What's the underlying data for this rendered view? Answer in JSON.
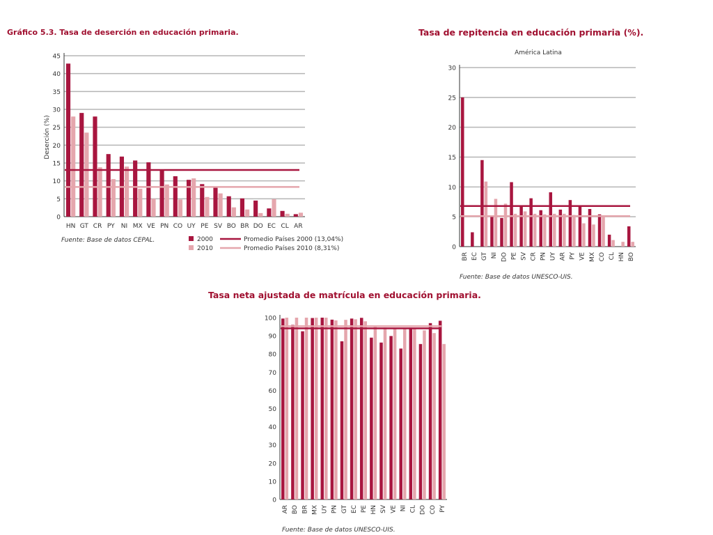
{
  "colors": {
    "y2000": "#a8163f",
    "y2010": "#e5a6ad",
    "grid": "#b5b5b5",
    "axis": "#333333",
    "title": "#a01030"
  },
  "chart_data": [
    {
      "type": "bar",
      "title": "Gráfico 5.3. Tasa de deserción en educación primaria.",
      "subtitle": "",
      "xlabel": "",
      "ylabel": "Deserción (%)",
      "ylim": [
        0,
        45
      ],
      "yticks": [
        "0",
        "5",
        "10",
        "15",
        "20",
        "25",
        "30",
        "35",
        "40",
        "45"
      ],
      "grid": true,
      "legend_position": "bottom-right",
      "source": "Fuente: Base de datos CEPAL.",
      "categories": [
        "HN",
        "GT",
        "CR",
        "PY",
        "NI",
        "MX",
        "VE",
        "PN",
        "CO",
        "UY",
        "PE",
        "SV",
        "BO",
        "BR",
        "DO",
        "EC",
        "CL",
        "AR"
      ],
      "series": [
        {
          "name": "2000",
          "values": [
            42.8,
            29,
            28,
            17.5,
            16.8,
            15.7,
            15.2,
            13.2,
            11.3,
            10.3,
            9.1,
            8.1,
            5.7,
            5.1,
            4.5,
            2.3,
            1.6,
            0.7
          ]
        },
        {
          "name": "2010",
          "values": [
            28,
            23.5,
            13.8,
            10.5,
            14,
            7.8,
            5,
            9,
            4.8,
            10.7,
            5.5,
            6.5,
            2.6,
            2,
            1,
            4.9,
            0.8,
            1.1
          ]
        }
      ],
      "reference_lines": [
        {
          "name": "Promedio Países 2000 (13,04%)",
          "value": 13.04
        },
        {
          "name": "Promedio Países 2010 (8,31%)",
          "value": 8.31
        }
      ]
    },
    {
      "type": "bar",
      "title": "Tasa de repitencia en educación primaria (%).",
      "subtitle": "América Latina",
      "xlabel": "",
      "ylabel": "",
      "ylim": [
        0,
        30
      ],
      "yticks": [
        "0",
        "5",
        "10",
        "15",
        "20",
        "25",
        "30"
      ],
      "grid": true,
      "source": "Fuente: Base de datos UNESCO-UIS.",
      "categories": [
        "BR",
        "EC",
        "GT",
        "NI",
        "DO",
        "PE",
        "SV",
        "CR",
        "PN",
        "UY",
        "AR",
        "PY",
        "VE",
        "MX",
        "CO",
        "CL",
        "HN",
        "BO"
      ],
      "series": [
        {
          "values": [
            25,
            2.4,
            14.5,
            5,
            4.8,
            10.8,
            6.7,
            8.1,
            6.1,
            9.1,
            6.2,
            7.8,
            6.8,
            6.3,
            5.4,
            2,
            0,
            3.4
          ]
        },
        {
          "values": [
            0,
            0,
            10.9,
            8,
            7.2,
            5.5,
            5.9,
            5.5,
            5.4,
            5.5,
            5.5,
            5.3,
            3.9,
            3.7,
            5.2,
            1.1,
            0.8,
            0.8
          ]
        }
      ],
      "reference_lines": [
        {
          "value": 6.8
        },
        {
          "value": 5.1
        }
      ]
    },
    {
      "type": "bar",
      "title": "Tasa neta ajustada de matrícula en educación primaria.",
      "subtitle": "",
      "xlabel": "",
      "ylabel": "",
      "ylim": [
        0,
        100
      ],
      "yticks": [
        "0",
        "10",
        "20",
        "30",
        "40",
        "50",
        "60",
        "70",
        "80",
        "90",
        "100"
      ],
      "grid": false,
      "source": "Fuente: Base de datos UNESCO-UIS.",
      "categories": [
        "AR",
        "BO",
        "BR",
        "MX",
        "UY",
        "PN",
        "GT",
        "EC",
        "PE",
        "HN",
        "SV",
        "VE",
        "NI",
        "CL",
        "DO",
        "CO",
        "PY"
      ],
      "series": [
        {
          "values": [
            99.5,
            96,
            92.5,
            99.8,
            100,
            98.9,
            87,
            99.5,
            99.9,
            89,
            86.3,
            89.9,
            83,
            94.5,
            85.5,
            97,
            98.3
          ]
        },
        {
          "values": [
            100,
            100,
            100,
            100,
            100,
            98.5,
            98.8,
            99.1,
            98,
            95.7,
            94.6,
            93.8,
            94,
            94.2,
            93,
            91.5,
            85.5
          ]
        }
      ],
      "reference_lines": [
        {
          "value": 94.1
        },
        {
          "value": 95.3
        }
      ]
    }
  ]
}
